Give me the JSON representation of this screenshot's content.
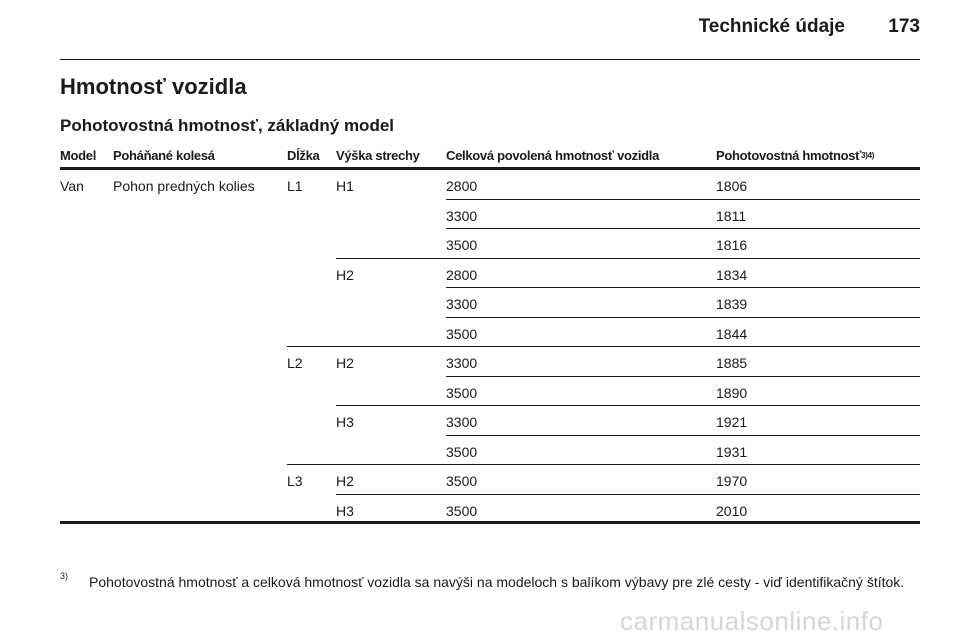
{
  "header": {
    "title": "Technické údaje",
    "page_number": "173"
  },
  "section": {
    "title": "Hmotnosť vozidla",
    "subtitle": "Pohotovostná hmotnosť, základný model"
  },
  "table": {
    "columns": {
      "model": "Model",
      "driven_wheels": "Poháňané kolesá",
      "length": "Dĺžka",
      "roof_height": "Výška strechy",
      "total_weight": "Celková povolená hmotnosť vozidla",
      "curb_weight": "Pohotovostná hmotnosť",
      "curb_weight_refs": "3)4)"
    },
    "rows": [
      {
        "model": "Van",
        "driven_wheels": "Pohon predných kolies",
        "length": "L1",
        "roof_height": "H1",
        "total_weight": "2800",
        "curb_weight": "1806"
      },
      {
        "model": "",
        "driven_wheels": "",
        "length": "",
        "roof_height": "",
        "total_weight": "3300",
        "curb_weight": "1811"
      },
      {
        "model": "",
        "driven_wheels": "",
        "length": "",
        "roof_height": "",
        "total_weight": "3500",
        "curb_weight": "1816"
      },
      {
        "model": "",
        "driven_wheels": "",
        "length": "",
        "roof_height": "H2",
        "total_weight": "2800",
        "curb_weight": "1834"
      },
      {
        "model": "",
        "driven_wheels": "",
        "length": "",
        "roof_height": "",
        "total_weight": "3300",
        "curb_weight": "1839"
      },
      {
        "model": "",
        "driven_wheels": "",
        "length": "",
        "roof_height": "",
        "total_weight": "3500",
        "curb_weight": "1844"
      },
      {
        "model": "",
        "driven_wheels": "",
        "length": "L2",
        "roof_height": "H2",
        "total_weight": "3300",
        "curb_weight": "1885"
      },
      {
        "model": "",
        "driven_wheels": "",
        "length": "",
        "roof_height": "",
        "total_weight": "3500",
        "curb_weight": "1890"
      },
      {
        "model": "",
        "driven_wheels": "",
        "length": "",
        "roof_height": "H3",
        "total_weight": "3300",
        "curb_weight": "1921"
      },
      {
        "model": "",
        "driven_wheels": "",
        "length": "",
        "roof_height": "",
        "total_weight": "3500",
        "curb_weight": "1931"
      },
      {
        "model": "",
        "driven_wheels": "",
        "length": "L3",
        "roof_height": "H2",
        "total_weight": "3500",
        "curb_weight": "1970"
      },
      {
        "model": "",
        "driven_wheels": "",
        "length": "",
        "roof_height": "H3",
        "total_weight": "3500",
        "curb_weight": "2010"
      }
    ]
  },
  "footnote": {
    "marker": "3)",
    "text": "Pohotovostná hmotnosť a celková hmotnosť vozidla sa navýši na modeloch s balíkom výbavy pre zlé cesty - viď identifikačný štítok."
  },
  "watermark": "carmanualsonline.info"
}
